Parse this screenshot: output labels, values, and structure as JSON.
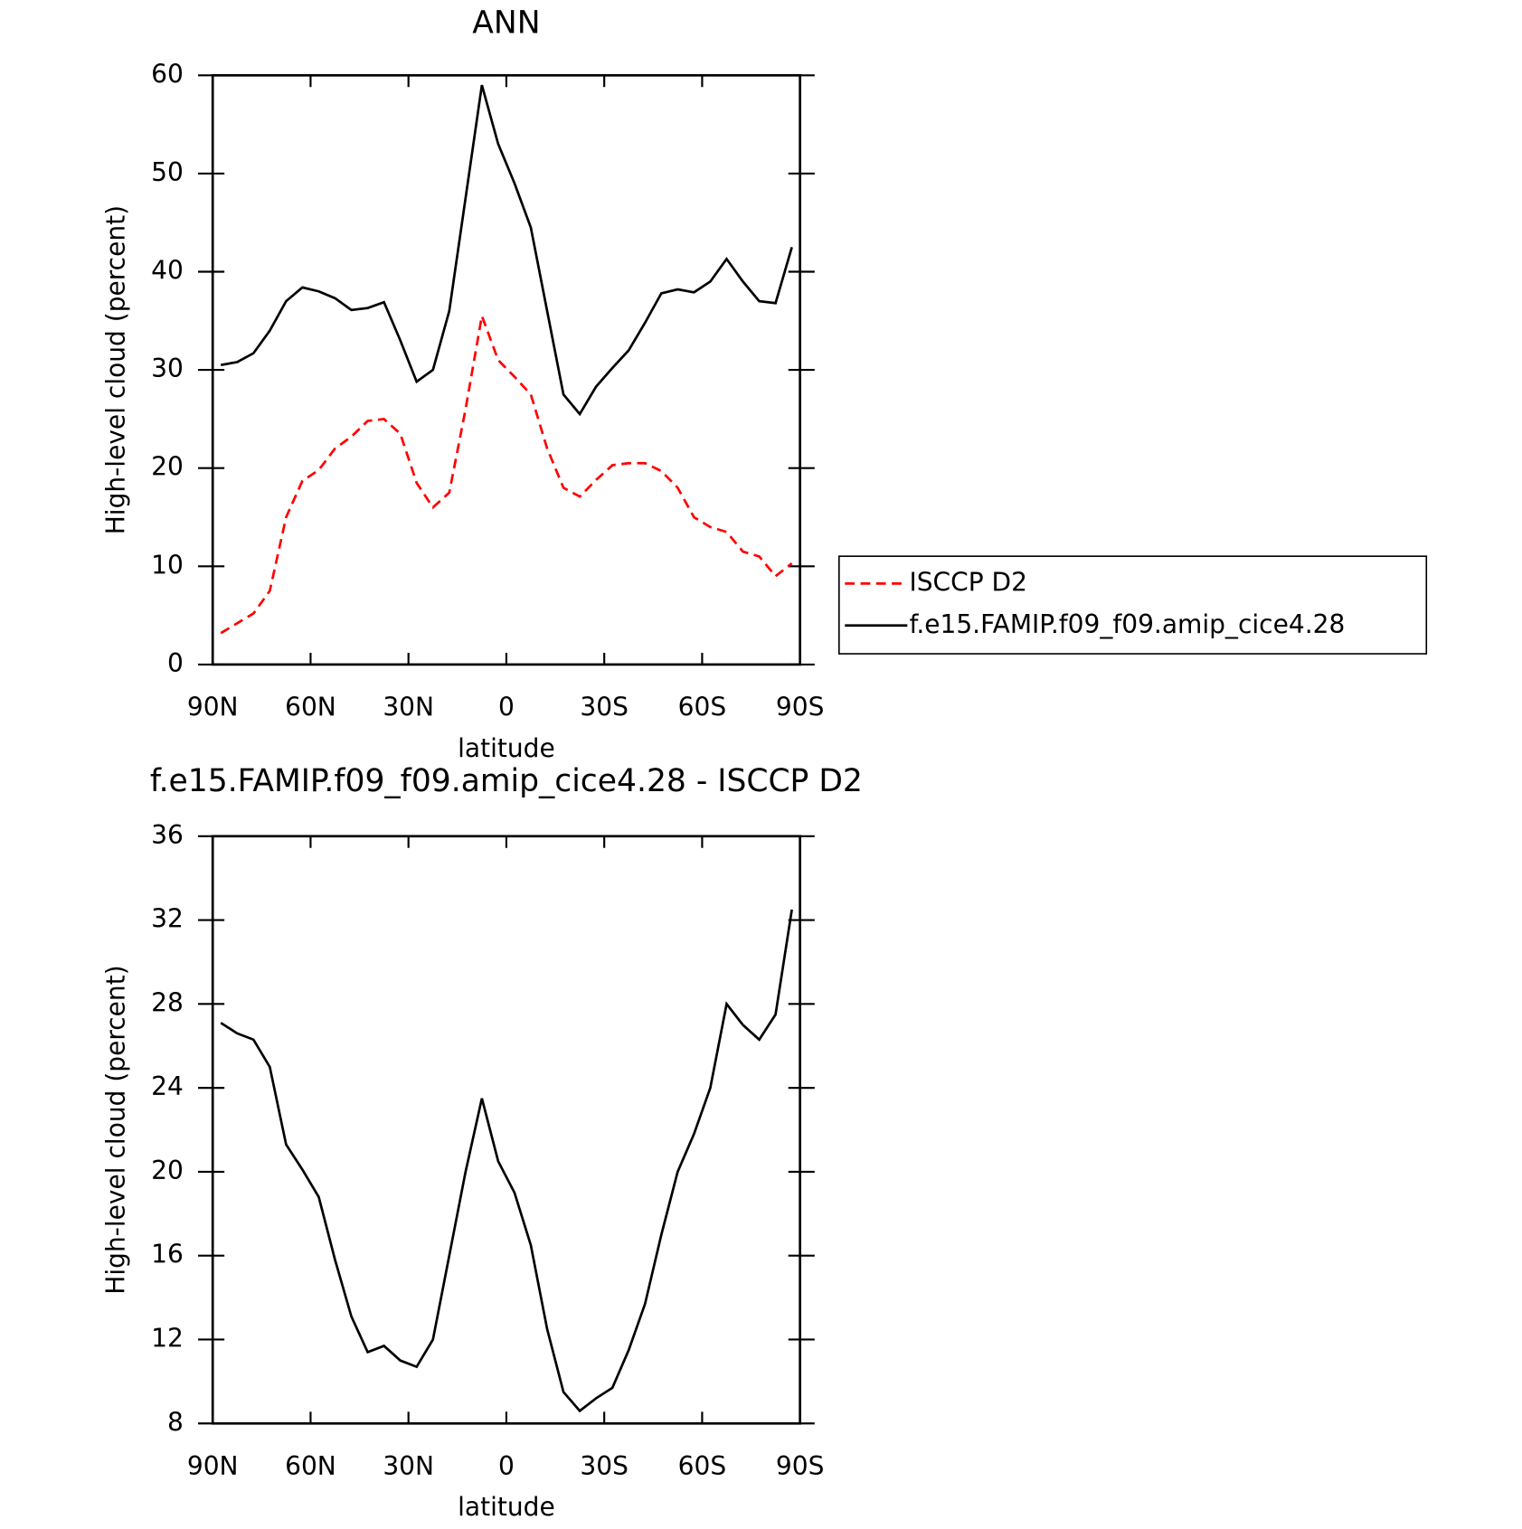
{
  "chart_data": [
    {
      "type": "line",
      "title": "ANN",
      "xlabel": "latitude",
      "ylabel": "High-level cloud (percent)",
      "x": [
        87.5,
        82.5,
        77.5,
        72.5,
        67.5,
        62.5,
        57.5,
        52.5,
        47.5,
        42.5,
        37.5,
        32.5,
        27.5,
        22.5,
        17.5,
        12.5,
        7.5,
        2.5,
        -2.5,
        -7.5,
        -12.5,
        -17.5,
        -22.5,
        -27.5,
        -32.5,
        -37.5,
        -42.5,
        -47.5,
        -52.5,
        -57.5,
        -62.5,
        -67.5,
        -72.5,
        -77.5,
        -82.5,
        -87.5
      ],
      "series": [
        {
          "name": "ISCCP D2",
          "color": "#ff0000",
          "linestyle": "dashed",
          "values": [
            3.2,
            4.2,
            5.2,
            7.5,
            15,
            18.7,
            19.8,
            22,
            23.2,
            24.8,
            25,
            23.5,
            18.5,
            16,
            17.5,
            26,
            35.5,
            31,
            29.3,
            27.5,
            22,
            18,
            17.1,
            18.8,
            20.3,
            20.5,
            20.5,
            19.7,
            18,
            15,
            14,
            13.5,
            11.5,
            11,
            9,
            10.3
          ]
        },
        {
          "name": "f.e15.FAMIP.f09_f09.amip_cice4.28",
          "color": "#000000",
          "linestyle": "solid",
          "values": [
            30.5,
            30.8,
            31.7,
            34,
            37,
            38.4,
            38,
            37.3,
            36.1,
            36.3,
            36.9,
            33,
            28.8,
            30,
            36,
            47.5,
            59,
            53,
            49,
            44.5,
            36,
            27.5,
            25.5,
            28.3,
            30.2,
            32,
            34.8,
            37.8,
            38.2,
            37.9,
            39,
            41.3,
            39,
            37,
            36.8,
            42.5
          ]
        }
      ],
      "xlim": [
        90,
        -90
      ],
      "xticks": [
        {
          "value": 90,
          "label": "90N"
        },
        {
          "value": 60,
          "label": "60N"
        },
        {
          "value": 30,
          "label": "30N"
        },
        0,
        {
          "value": -30,
          "label": "30S"
        },
        {
          "value": -60,
          "label": "60S"
        },
        {
          "value": -90,
          "label": "90S"
        }
      ],
      "ylim": [
        0,
        60
      ],
      "yticks": [
        0,
        10,
        20,
        30,
        40,
        50,
        60
      ],
      "legend": "right"
    },
    {
      "type": "line",
      "title": "f.e15.FAMIP.f09_f09.amip_cice4.28 - ISCCP D2",
      "xlabel": "latitude",
      "ylabel": "High-level cloud (percent)",
      "x": [
        87.5,
        82.5,
        77.5,
        72.5,
        67.5,
        62.5,
        57.5,
        52.5,
        47.5,
        42.5,
        37.5,
        32.5,
        27.5,
        22.5,
        17.5,
        12.5,
        7.5,
        2.5,
        -2.5,
        -7.5,
        -12.5,
        -17.5,
        -22.5,
        -27.5,
        -32.5,
        -37.5,
        -42.5,
        -47.5,
        -52.5,
        -57.5,
        -62.5,
        -67.5,
        -72.5,
        -77.5,
        -82.5,
        -87.5
      ],
      "series": [
        {
          "color": "#000000",
          "linestyle": "solid",
          "values": [
            27.1,
            26.6,
            26.3,
            25,
            21.3,
            20.1,
            18.8,
            15.8,
            13.1,
            11.4,
            11.7,
            11,
            10.7,
            12,
            16,
            20,
            23.5,
            20.5,
            19,
            16.5,
            12.5,
            9.5,
            8.6,
            9.2,
            9.7,
            11.5,
            13.7,
            17,
            20,
            21.8,
            24,
            28,
            27,
            26.3,
            27.5,
            32.5
          ]
        }
      ],
      "xlim": [
        90,
        -90
      ],
      "xticks": [
        {
          "value": 90,
          "label": "90N"
        },
        {
          "value": 60,
          "label": "60N"
        },
        {
          "value": 30,
          "label": "30N"
        },
        0,
        {
          "value": -30,
          "label": "30S"
        },
        {
          "value": -60,
          "label": "60S"
        },
        {
          "value": -90,
          "label": "90S"
        }
      ],
      "ylim": [
        8,
        36
      ],
      "yticks": [
        8,
        12,
        16,
        20,
        24,
        28,
        32,
        36
      ]
    }
  ]
}
